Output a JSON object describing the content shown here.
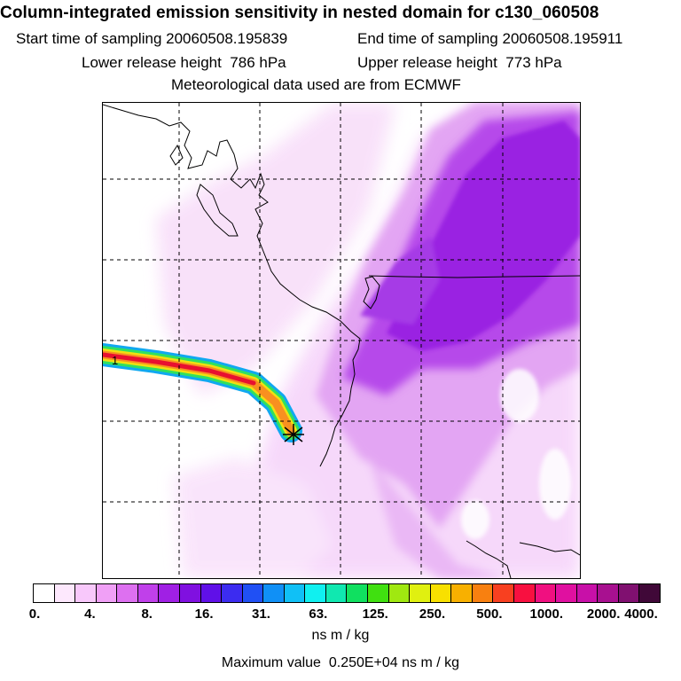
{
  "header": {
    "title": "Column-integrated emission sensitivity in nested domain for c130_060508",
    "start_label": "Start time of sampling",
    "start_value": "20060508.195839",
    "end_label": "End time of sampling",
    "end_value": "20060508.195911",
    "lower_label": "Lower release height",
    "lower_value": "786 hPa",
    "upper_label": "Upper release height",
    "upper_value": "773 hPa",
    "met_data": "Meteorological data used are from ECMWF"
  },
  "map": {
    "release_marker_label": "1",
    "colors": {
      "coastline": "#000000",
      "gridline": "#000000",
      "plume_low": "#f2c9f7",
      "plume_mid": "#d98ff0",
      "plume_high": "#a830e6",
      "plume_core": "#9010e0"
    }
  },
  "colorbar": {
    "tick_labels": [
      "0.",
      "4.",
      "8.",
      "16.",
      "31.",
      "63.",
      "125.",
      "250.",
      "500.",
      "1000.",
      "2000.",
      "4000."
    ],
    "colors": [
      "#ffffff",
      "#fde8fd",
      "#f8c8fb",
      "#f0a0f6",
      "#dd70f0",
      "#c040ea",
      "#a020e4",
      "#8010e0",
      "#6010e8",
      "#3c2cf0",
      "#2050f4",
      "#1090f6",
      "#10c0f6",
      "#10f0f0",
      "#10e8b0",
      "#10e060",
      "#40e010",
      "#a0e810",
      "#e0f010",
      "#f8e000",
      "#f8b000",
      "#f88010",
      "#f84020",
      "#f81040",
      "#f01080",
      "#e010a0",
      "#c810a8",
      "#a81090",
      "#801070",
      "#400838"
    ],
    "units": "ns m / kg",
    "max_label": "Maximum value",
    "max_value": "0.250E+04",
    "max_units": "ns m / kg"
  }
}
